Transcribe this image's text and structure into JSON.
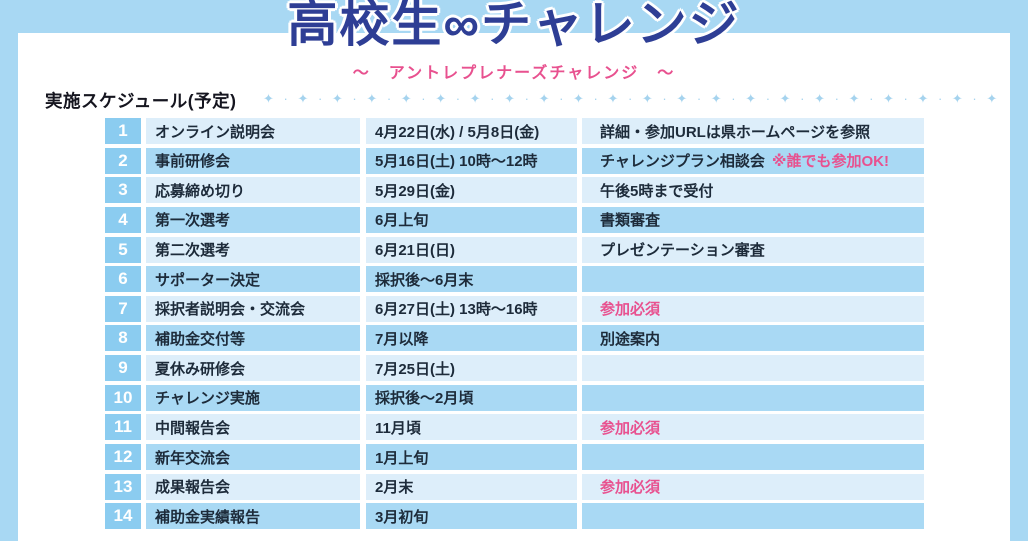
{
  "page": {
    "title": "高校生∞チャレンジ",
    "subtitle": "〜　アントレプレナーズチャレンジ　〜",
    "section_heading": "実施スケジュール(予定)",
    "decoration": "✦ · ✦ · ✦ · ✦ · ✦ · ✦ · ✦ · ✦ · ✦ · ✦ · ✦ · ✦ · ✦ · ✦ · ✦ · ✦ · ✦ · ✦ · ✦ · ✦ · ✦ · ✦ · ✦ · ✦ ·"
  },
  "colors": {
    "frame_blue": "#a8d8f3",
    "number_cell_blue": "#8bccf0",
    "row_light_blue": "#ddeefa",
    "row_dark_blue": "#a9d9f4",
    "title_navy": "#2e3e95",
    "accent_pink": "#e8518f",
    "body_text": "#1d2b3a"
  },
  "schedule": {
    "rows": [
      {
        "no": "1",
        "name": "オンライン説明会",
        "date": "4月22日(水) / 5月8日(金)",
        "note": "詳細・参加URLは県ホームページを参照",
        "note_accent": ""
      },
      {
        "no": "2",
        "name": "事前研修会",
        "date": "5月16日(土) 10時〜12時",
        "note": "チャレンジプラン相談会",
        "note_accent": "※誰でも参加OK!"
      },
      {
        "no": "3",
        "name": "応募締め切り",
        "date": "5月29日(金)",
        "note": "午後5時まで受付",
        "note_accent": ""
      },
      {
        "no": "4",
        "name": "第一次選考",
        "date": "6月上旬",
        "note": "書類審査",
        "note_accent": ""
      },
      {
        "no": "5",
        "name": "第二次選考",
        "date": "6月21日(日)",
        "note": "プレゼンテーション審査",
        "note_accent": ""
      },
      {
        "no": "6",
        "name": "サポーター決定",
        "date": "採択後〜6月末",
        "note": "",
        "note_accent": ""
      },
      {
        "no": "7",
        "name": "採択者説明会・交流会",
        "date": "6月27日(土) 13時〜16時",
        "note": "",
        "note_accent": "参加必須"
      },
      {
        "no": "8",
        "name": "補助金交付等",
        "date": "7月以降",
        "note": "別途案内",
        "note_accent": ""
      },
      {
        "no": "9",
        "name": "夏休み研修会",
        "date": "7月25日(土)",
        "note": "",
        "note_accent": ""
      },
      {
        "no": "10",
        "name": "チャレンジ実施",
        "date": "採択後〜2月頃",
        "note": "",
        "note_accent": ""
      },
      {
        "no": "11",
        "name": "中間報告会",
        "date": "11月頃",
        "note": "",
        "note_accent": "参加必須"
      },
      {
        "no": "12",
        "name": "新年交流会",
        "date": "1月上旬",
        "note": "",
        "note_accent": ""
      },
      {
        "no": "13",
        "name": "成果報告会",
        "date": "2月末",
        "note": "",
        "note_accent": "参加必須"
      },
      {
        "no": "14",
        "name": "補助金実績報告",
        "date": "3月初旬",
        "note": "",
        "note_accent": ""
      }
    ]
  }
}
